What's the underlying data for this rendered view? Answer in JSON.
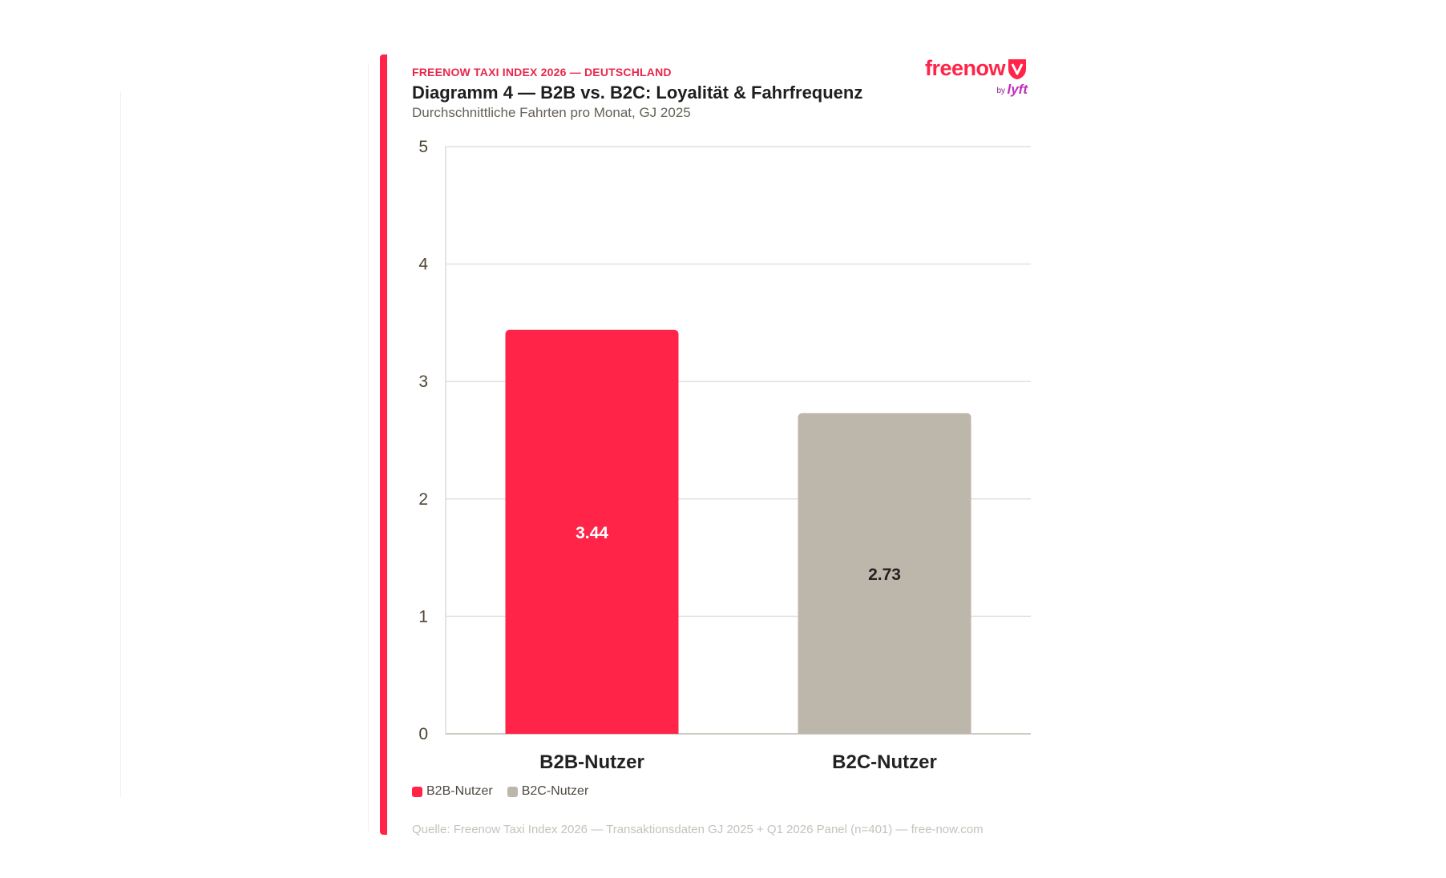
{
  "header": {
    "kicker": "FREENOW TAXI INDEX 2026 — DEUTSCHLAND",
    "title": "Diagramm 4 — B2B vs. B2C: Loyalität & Fahrfrequenz",
    "subtitle": "Durchschnittliche Fahrten pro Monat, GJ 2025"
  },
  "brand": {
    "name": "freenow",
    "by": "by",
    "partner": "lyft",
    "mark_icon": "freenow-logo-icon",
    "color": "#ff2448",
    "partner_color": "#c22cb8"
  },
  "colors": {
    "accent": "#ff2448",
    "b2c": "#bdb7ab",
    "grid": "#e4e1dc",
    "axis_text": "#4d4535"
  },
  "chart_data": {
    "type": "bar",
    "title": "Diagramm 4 — B2B vs. B2C: Loyalität & Fahrfrequenz",
    "subtitle": "Durchschnittliche Fahrten pro Monat, GJ 2025",
    "categories": [
      "B2B-Nutzer",
      "B2C-Nutzer"
    ],
    "values": [
      3.44,
      2.73
    ],
    "value_labels": [
      "3.44",
      "2.73"
    ],
    "colors": [
      "#ff2448",
      "#bdb7ab"
    ],
    "label_colors": [
      "#ffffff",
      "#222222"
    ],
    "ylim": [
      0,
      5
    ],
    "yticks": [
      0,
      1,
      2,
      3,
      4,
      5
    ],
    "xlabel": "",
    "ylabel": "",
    "grid": true,
    "legend_position": "bottom-left",
    "legend": [
      "B2B-Nutzer",
      "B2C-Nutzer"
    ]
  },
  "footer": {
    "source": "Quelle: Freenow Taxi Index 2026 — Transaktionsdaten GJ 2025 + Q1 2026 Panel (n=401) — free-now.com"
  }
}
